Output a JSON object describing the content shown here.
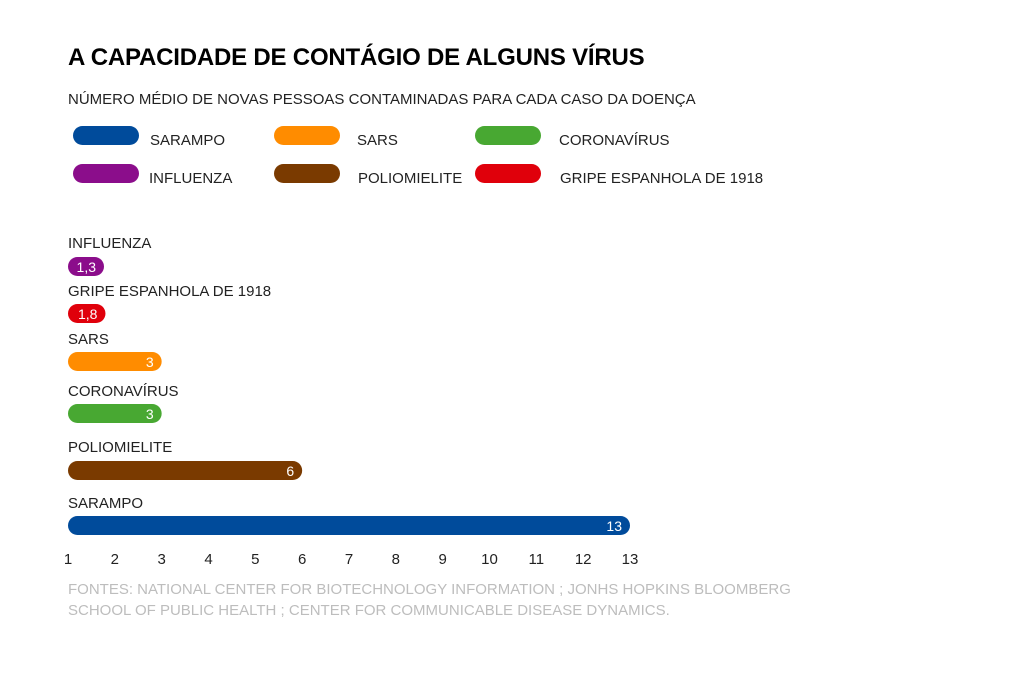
{
  "chart_data": {
    "type": "bar",
    "orientation": "horizontal",
    "title": "A CAPACIDADE DE CONTÁGIO DE ALGUNS VÍRUS",
    "subtitle": "NÚMERO MÉDIO DE NOVAS PESSOAS CONTAMINADAS PARA CADA CASO DA DOENÇA",
    "categories": [
      "INFLUENZA",
      "GRIPE ESPANHOLA DE 1918",
      "SARS",
      "CORONAVÍRUS",
      "POLIOMIELITE",
      "SARAMPO"
    ],
    "values": [
      1.3,
      1.8,
      3,
      3,
      6,
      13
    ],
    "value_labels": [
      "1,3",
      "1,8",
      "3",
      "3",
      "6",
      "13"
    ],
    "colors": [
      "#8b0d8b",
      "#e0000b",
      "#ff8c00",
      "#48a832",
      "#7a3a00",
      "#004b9b"
    ],
    "x_ticks": [
      "1",
      "2",
      "3",
      "4",
      "5",
      "6",
      "7",
      "8",
      "9",
      "10",
      "11",
      "12",
      "13"
    ],
    "xlim": [
      1,
      13
    ],
    "grid": false,
    "legend": {
      "placement": "top",
      "entries": [
        {
          "label": "SARAMPO",
          "color": "#004b9b"
        },
        {
          "label": "SARS",
          "color": "#ff8c00"
        },
        {
          "label": "CORONAVÍRUS",
          "color": "#48a832"
        },
        {
          "label": "INFLUENZA",
          "color": "#8b0d8b"
        },
        {
          "label": "POLIOMIELITE",
          "color": "#7a3a00"
        },
        {
          "label": "GRIPE ESPANHOLA DE 1918",
          "color": "#e0000b"
        }
      ]
    },
    "source": "FONTES: NATIONAL CENTER FOR BIOTECHNOLOGY INFORMATION ; JONHS HOPKINS BLOOMBERG SCHOOL OF PUBLIC HEALTH ; CENTER FOR COMMUNICABLE DISEASE DYNAMICS."
  }
}
